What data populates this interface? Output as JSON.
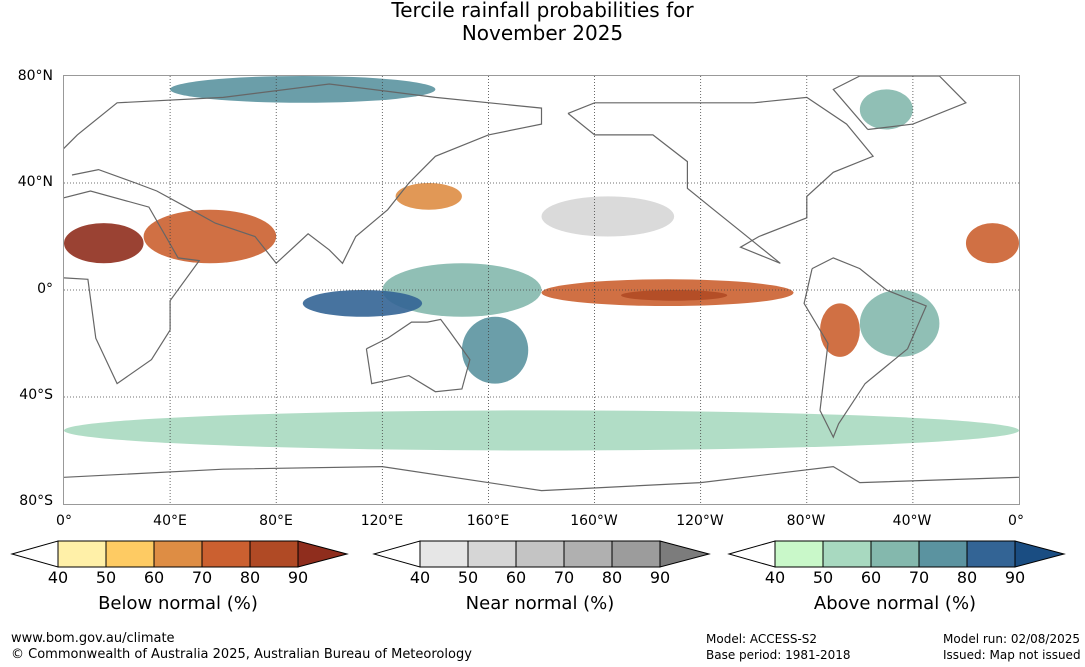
{
  "title": {
    "line1": "Tercile rainfall probabilities for",
    "line2": "November 2025"
  },
  "map": {
    "lat_labels": [
      "80°N",
      "40°N",
      "0°",
      "40°S",
      "80°S"
    ],
    "lon_labels": [
      "0°",
      "40°E",
      "80°E",
      "120°E",
      "160°E",
      "160°W",
      "120°W",
      "80°W",
      "40°W",
      "0°"
    ],
    "ocean_color": "#ffffff",
    "coast_color": "#666666",
    "grid": "dotted",
    "zones": [
      {
        "category": "above",
        "level": 1,
        "lon": [
          0,
          360
        ],
        "lat": [
          -60,
          -45
        ]
      },
      {
        "category": "above",
        "level": 2,
        "lon": [
          120,
          180
        ],
        "lat": [
          -10,
          10
        ]
      },
      {
        "category": "above",
        "level": 4,
        "lon": [
          90,
          135
        ],
        "lat": [
          -10,
          0
        ]
      },
      {
        "category": "above",
        "level": 3,
        "lon": [
          150,
          175
        ],
        "lat": [
          -35,
          -10
        ]
      },
      {
        "category": "above",
        "level": 2,
        "lon": [
          300,
          330
        ],
        "lat": [
          -25,
          0
        ]
      },
      {
        "category": "above",
        "level": 2,
        "lon": [
          300,
          320
        ],
        "lat": [
          60,
          75
        ]
      },
      {
        "category": "above",
        "level": 3,
        "lon": [
          40,
          140
        ],
        "lat": [
          70,
          80
        ]
      },
      {
        "category": "below",
        "level": 5,
        "lon": [
          0,
          30
        ],
        "lat": [
          10,
          25
        ]
      },
      {
        "category": "below",
        "level": 3,
        "lon": [
          30,
          80
        ],
        "lat": [
          10,
          30
        ]
      },
      {
        "category": "below",
        "level": 3,
        "lon": [
          180,
          275
        ],
        "lat": [
          -6,
          4
        ]
      },
      {
        "category": "below",
        "level": 4,
        "lon": [
          210,
          250
        ],
        "lat": [
          -4,
          0
        ]
      },
      {
        "category": "below",
        "level": 3,
        "lon": [
          285,
          300
        ],
        "lat": [
          -25,
          -5
        ]
      },
      {
        "category": "below",
        "level": 3,
        "lon": [
          340,
          360
        ],
        "lat": [
          10,
          25
        ]
      },
      {
        "category": "below",
        "level": 2,
        "lon": [
          125,
          150
        ],
        "lat": [
          30,
          40
        ]
      },
      {
        "category": "near",
        "level": 1,
        "lon": [
          180,
          230
        ],
        "lat": [
          20,
          35
        ]
      }
    ]
  },
  "colorbars": [
    {
      "title": "Below normal (%)",
      "ticks": [
        "40",
        "50",
        "60",
        "70",
        "80",
        "90"
      ],
      "colors": [
        "#fff0a8",
        "#fecb63",
        "#de8d44",
        "#cb6030",
        "#b04a25",
        "#8f2d1d"
      ]
    },
    {
      "title": "Near normal (%)",
      "ticks": [
        "40",
        "50",
        "60",
        "70",
        "80",
        "90"
      ],
      "colors": [
        "#e6e6e6",
        "#d6d6d6",
        "#c4c4c4",
        "#b0b0b0",
        "#9c9c9c",
        "#7c7c7c"
      ]
    },
    {
      "title": "Above normal (%)",
      "ticks": [
        "40",
        "50",
        "60",
        "70",
        "80",
        "90"
      ],
      "colors": [
        "#c9f8c9",
        "#a8d9c0",
        "#84b8ad",
        "#5b93a0",
        "#336495",
        "#1a4d82"
      ]
    }
  ],
  "footer": {
    "url": "www.bom.gov.au/climate",
    "copyright": "© Commonwealth of Australia 2025, Australian Bureau of Meteorology",
    "model": "Model: ACCESS-S2",
    "base_period": "Base period: 1981-2018",
    "model_run": "Model run: 02/08/2025",
    "issued": "Issued: Map not issued"
  }
}
